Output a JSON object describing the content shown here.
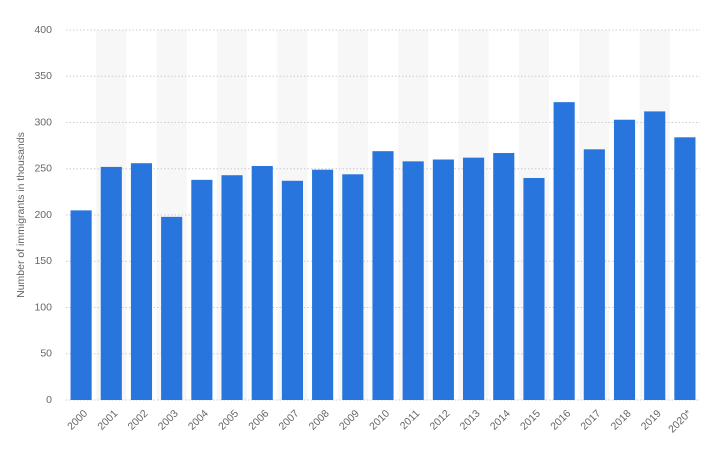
{
  "chart_data": {
    "type": "bar",
    "y_label": "Number of immigrants in thousands",
    "categories": [
      "2000",
      "2001",
      "2002",
      "2003",
      "2004",
      "2005",
      "2006",
      "2007",
      "2008",
      "2009",
      "2010",
      "2011",
      "2012",
      "2013",
      "2014",
      "2015",
      "2016",
      "2017",
      "2018",
      "2019",
      "2020*"
    ],
    "values": [
      205,
      252,
      256,
      198,
      238,
      243,
      253,
      237,
      249,
      244,
      269,
      258,
      260,
      262,
      267,
      240,
      322,
      271,
      303,
      312,
      284
    ],
    "color": "#2876dd",
    "ylim": [
      0,
      400
    ],
    "yticks": [
      0,
      50,
      100,
      150,
      200,
      250,
      300,
      350,
      400
    ],
    "grid": true
  }
}
